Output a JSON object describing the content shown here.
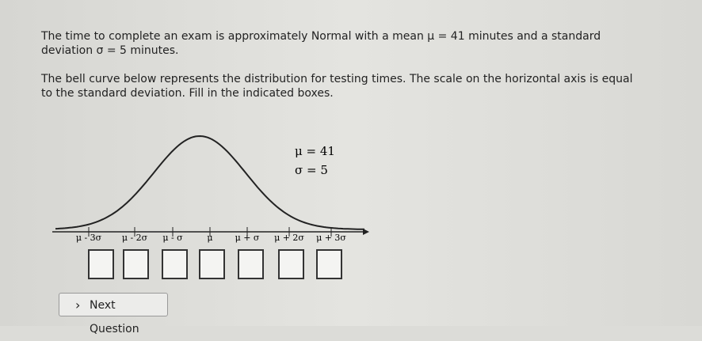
{
  "problem": {
    "lines": [
      "The time to complete an exam is approximately Normal with a mean μ = 41 minutes and a standard",
      "deviation σ = 5 minutes.",
      "The bell curve below represents the distribution for testing times. The scale on the horizontal axis is equal",
      "to the standard deviation. Fill in the indicated boxes."
    ]
  },
  "curve": {
    "mean_label": "μ = 41",
    "sd_label": "σ = 5",
    "tick_labels": [
      "μ - 3σ",
      "μ - 2σ",
      "μ - σ",
      "μ",
      "μ + σ",
      "μ + 2σ",
      "μ + 3σ"
    ]
  },
  "button": {
    "label": "Next Question"
  }
}
